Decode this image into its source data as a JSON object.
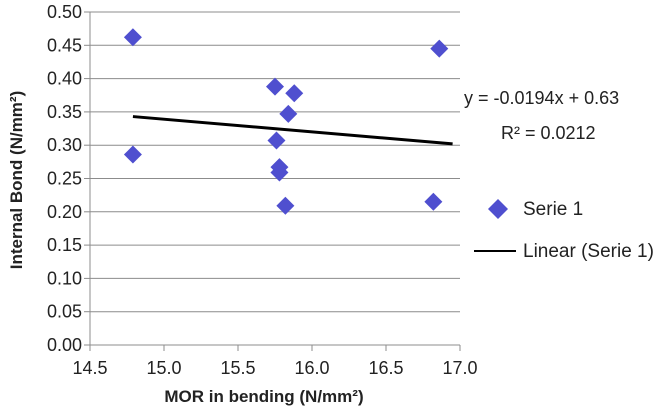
{
  "chart_data": {
    "type": "scatter",
    "title": "",
    "xlabel": "MOR in bending (N/mm²)",
    "ylabel": "Internal Bond (N/mm²)",
    "xlim": [
      14.5,
      17.0
    ],
    "ylim": [
      0.0,
      0.5
    ],
    "x_ticks": [
      "14.5",
      "15.0",
      "15.5",
      "16.0",
      "16.5",
      "17.0"
    ],
    "y_ticks": [
      "0.00",
      "0.05",
      "0.10",
      "0.15",
      "0.20",
      "0.25",
      "0.30",
      "0.35",
      "0.40",
      "0.45",
      "0.50"
    ],
    "grid": "horizontal",
    "series": [
      {
        "name": "Serie 1",
        "marker": "diamond",
        "color": "#4F4FCF",
        "points": [
          {
            "x": 14.79,
            "y": 0.462
          },
          {
            "x": 14.79,
            "y": 0.286
          },
          {
            "x": 15.75,
            "y": 0.388
          },
          {
            "x": 15.88,
            "y": 0.378
          },
          {
            "x": 15.84,
            "y": 0.347
          },
          {
            "x": 15.76,
            "y": 0.307
          },
          {
            "x": 15.78,
            "y": 0.267
          },
          {
            "x": 15.78,
            "y": 0.259
          },
          {
            "x": 15.82,
            "y": 0.209
          },
          {
            "x": 16.86,
            "y": 0.445
          },
          {
            "x": 16.82,
            "y": 0.215
          }
        ]
      }
    ],
    "trendline": {
      "name": "Linear (Serie 1)",
      "color": "#000000",
      "slope": -0.0194,
      "intercept": 0.63,
      "x_range": [
        14.79,
        16.95
      ],
      "y_range": [
        0.343,
        0.302
      ],
      "equation": "y = -0.0194x + 0.63",
      "r2_label": "R² = 0.0212"
    },
    "legend": {
      "placement": "right",
      "items": [
        "Serie 1",
        "Linear (Serie 1)"
      ]
    }
  }
}
